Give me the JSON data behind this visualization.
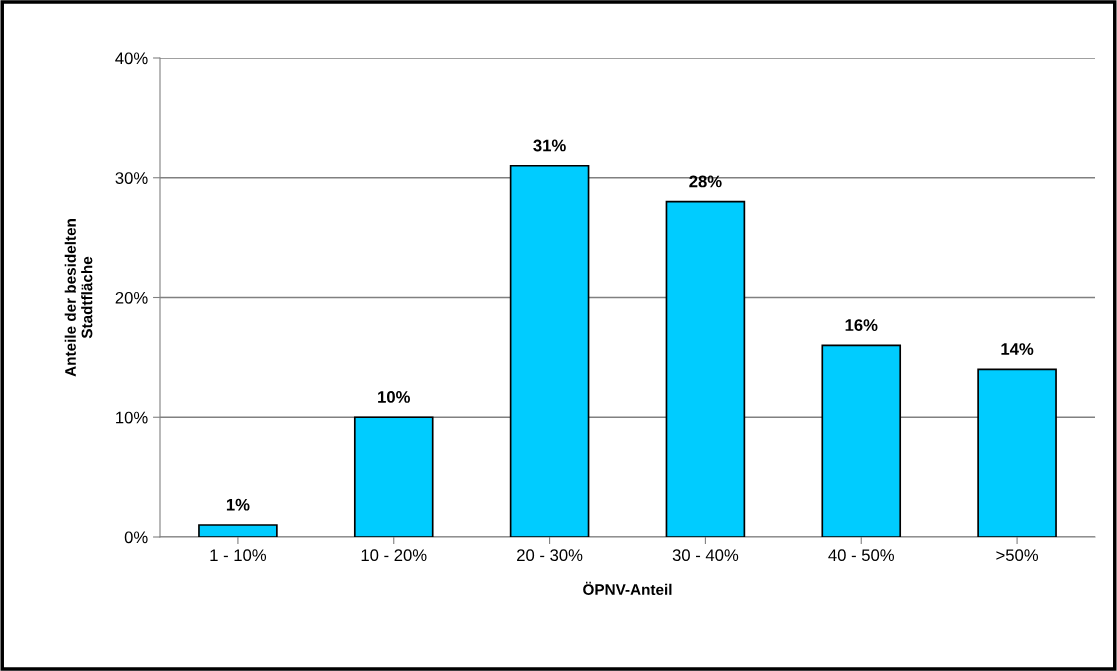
{
  "chart_data": {
    "type": "bar",
    "categories": [
      "1 - 10%",
      "10 - 20%",
      "20 - 30%",
      "30 - 40%",
      "40 - 50%",
      ">50%"
    ],
    "values": [
      1,
      10,
      31,
      28,
      16,
      14
    ],
    "value_labels": [
      "1%",
      "10%",
      "31%",
      "28%",
      "16%",
      "14%"
    ],
    "color": "#00ccff",
    "xlabel": "ÖPNV-Anteil",
    "ylabel": "Anteile der besidelten\nStadtfläche",
    "ylim": [
      0,
      40
    ],
    "yticks": [
      {
        "value": 0,
        "label": "0%"
      },
      {
        "value": 10,
        "label": "10%"
      },
      {
        "value": 20,
        "label": "20%"
      },
      {
        "value": 30,
        "label": "30%"
      },
      {
        "value": 40,
        "label": "40%"
      }
    ],
    "grid": "y"
  }
}
